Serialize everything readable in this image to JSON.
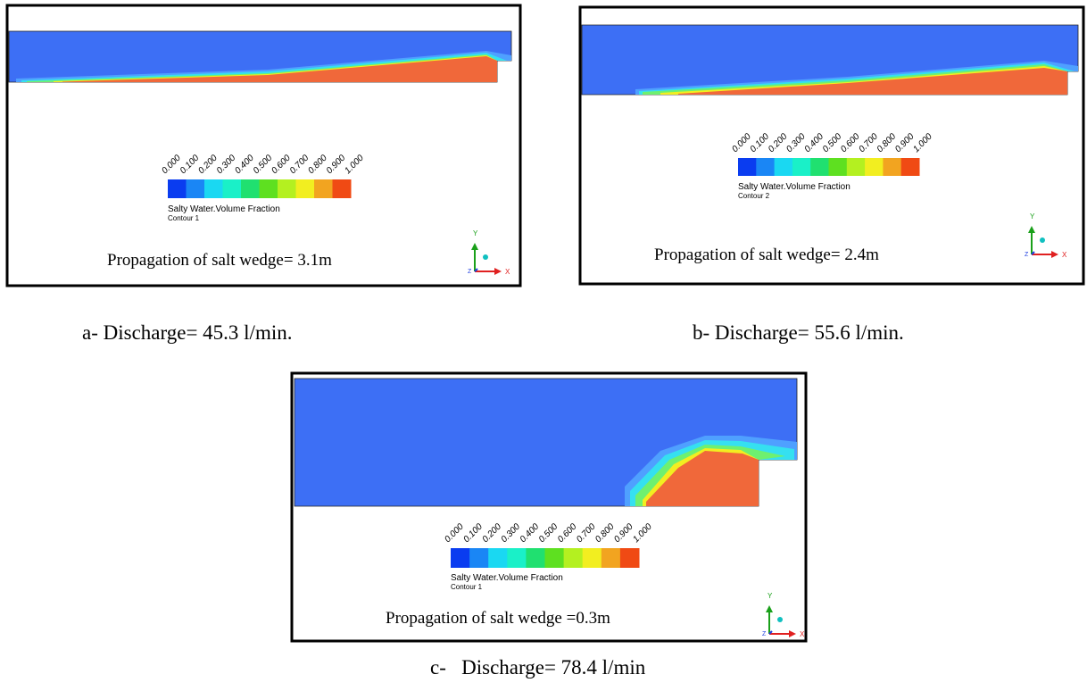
{
  "panels": [
    {
      "legend_ticks": [
        "0.000",
        "0.100",
        "0.200",
        "0.300",
        "0.400",
        "0.500",
        "0.600",
        "0.700",
        "0.800",
        "0.900",
        "1.000"
      ],
      "legend_title": "Salty Water.Volume Fraction",
      "contour": "Contour 1",
      "propagation": "Propagation of salt wedge= 3.1m",
      "caption": "a- Discharge= 45.3 l/min.",
      "triad": {
        "y": "Y",
        "x": "X",
        "z": "Z"
      }
    },
    {
      "legend_ticks": [
        "0.000",
        "0.100",
        "0.200",
        "0.300",
        "0.400",
        "0.500",
        "0.600",
        "0.700",
        "0.800",
        "0.900",
        "1.000"
      ],
      "legend_title": "Salty Water.Volume Fraction",
      "contour": "Contour 2",
      "propagation": "Propagation of salt wedge= 2.4m",
      "caption": "b- Discharge= 55.6 l/min.",
      "triad": {
        "y": "Y",
        "x": "X",
        "z": "Z"
      }
    },
    {
      "legend_ticks": [
        "0.000",
        "0.100",
        "0.200",
        "0.300",
        "0.400",
        "0.500",
        "0.600",
        "0.700",
        "0.800",
        "0.900",
        "1.000"
      ],
      "legend_title": "Salty Water.Volume Fraction",
      "contour": "Contour 1",
      "propagation": "Propagation of salt wedge =0.3m",
      "caption": "c-   Discharge= 78.4 l/min",
      "triad": {
        "y": "Y",
        "x": "X",
        "z": "Z"
      }
    }
  ]
}
